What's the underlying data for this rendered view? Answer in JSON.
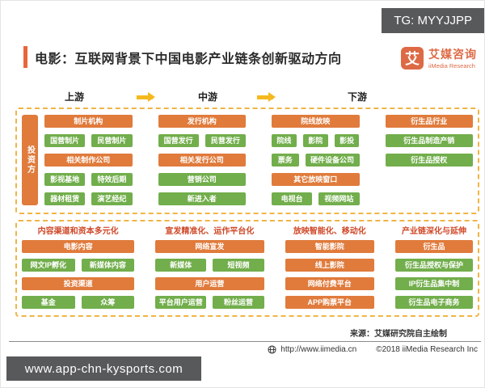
{
  "watermarks": {
    "top_right": "TG: MYYJJPP",
    "bottom_left": "www.app-chn-kysports.com"
  },
  "header": {
    "title": "电影：互联网背景下中国电影产业链条创新驱动方向",
    "logo": {
      "glyph": "艾",
      "name": "艾媒咨询",
      "subtitle": "iiMedia Research"
    }
  },
  "streams": [
    {
      "label": "上游"
    },
    {
      "label": "中游"
    },
    {
      "label": "下游"
    }
  ],
  "chain": {
    "investor_label": "投资方",
    "groups": [
      {
        "rows": [
          [
            {
              "t": "制片机构",
              "c": "orange"
            }
          ],
          [
            {
              "t": "国营制片",
              "c": "green"
            },
            {
              "t": "民营制片",
              "c": "green"
            }
          ],
          [
            {
              "t": "相关制作公司",
              "c": "orange"
            }
          ],
          [
            {
              "t": "影视基地",
              "c": "green"
            },
            {
              "t": "特效后期",
              "c": "green"
            }
          ],
          [
            {
              "t": "器材租赁",
              "c": "green"
            },
            {
              "t": "演艺经纪",
              "c": "green"
            }
          ]
        ]
      },
      {
        "rows": [
          [
            {
              "t": "发行机构",
              "c": "orange"
            }
          ],
          [
            {
              "t": "国营发行",
              "c": "green"
            },
            {
              "t": "民营发行",
              "c": "green"
            }
          ],
          [
            {
              "t": "相关发行公司",
              "c": "orange"
            }
          ],
          [
            {
              "t": "营销公司",
              "c": "green"
            }
          ],
          [
            {
              "t": "新进入者",
              "c": "green"
            }
          ]
        ]
      },
      {
        "rows": [
          [
            {
              "t": "院线放映",
              "c": "orange"
            }
          ],
          [
            {
              "t": "院线",
              "c": "green"
            },
            {
              "t": "影院",
              "c": "green"
            },
            {
              "t": "影投",
              "c": "green"
            }
          ],
          [
            {
              "t": "票务",
              "c": "green",
              "f": 1
            },
            {
              "t": "硬件设备公司",
              "c": "green",
              "f": 2
            }
          ],
          [
            {
              "t": "其它放映窗口",
              "c": "orange"
            }
          ],
          [
            {
              "t": "电视台",
              "c": "green"
            },
            {
              "t": "视频网站",
              "c": "green"
            }
          ]
        ]
      },
      {
        "rows": [
          [
            {
              "t": "衍生品行业",
              "c": "orange"
            }
          ],
          [
            {
              "t": "衍生品制造产销",
              "c": "green"
            }
          ],
          [
            {
              "t": "衍生品授权",
              "c": "green"
            }
          ]
        ]
      }
    ]
  },
  "innovation": {
    "columns": [
      {
        "header": "内容渠道和资本多元化",
        "rows": [
          [
            {
              "t": "电影内容",
              "c": "orange"
            }
          ],
          [
            {
              "t": "网文IP孵化",
              "c": "green"
            },
            {
              "t": "新媒体内容",
              "c": "green"
            }
          ],
          [
            {
              "t": "投资渠道",
              "c": "orange"
            }
          ],
          [
            {
              "t": "基金",
              "c": "green"
            },
            {
              "t": "众筹",
              "c": "green"
            }
          ]
        ]
      },
      {
        "header": "宣发精准化、运作平台化",
        "rows": [
          [
            {
              "t": "网络宣发",
              "c": "orange"
            }
          ],
          [
            {
              "t": "新媒体",
              "c": "green"
            },
            {
              "t": "短视频",
              "c": "green"
            }
          ],
          [
            {
              "t": "用户运营",
              "c": "orange"
            }
          ],
          [
            {
              "t": "平台用户运营",
              "c": "green"
            },
            {
              "t": "粉丝运营",
              "c": "green"
            }
          ]
        ]
      },
      {
        "header": "放映智能化、移动化",
        "rows": [
          [
            {
              "t": "智能影院",
              "c": "orange"
            }
          ],
          [
            {
              "t": "线上影院",
              "c": "orange"
            }
          ],
          [
            {
              "t": "网络付费平台",
              "c": "orange"
            }
          ],
          [
            {
              "t": "APP购票平台",
              "c": "orange"
            }
          ]
        ]
      },
      {
        "header": "产业链深化与延伸",
        "rows": [
          [
            {
              "t": "衍生品",
              "c": "orange"
            }
          ],
          [
            {
              "t": "衍生品授权与保护",
              "c": "green"
            }
          ],
          [
            {
              "t": "IP衍生品集中制",
              "c": "green"
            }
          ],
          [
            {
              "t": "衍生品电子商务",
              "c": "green"
            }
          ]
        ]
      }
    ]
  },
  "footer": {
    "source": "来源：艾媒研究院自主绘制",
    "url": "http://www.iimedia.cn",
    "copyright": "©2018  iiMedia Research Inc"
  },
  "colors": {
    "orange_box": "#E07B3C",
    "green_box": "#72AE4C",
    "section_header_red": "#CF4727",
    "dashed_border": "#F0B544",
    "arrow_yellow": "#F5B91E",
    "title_bar": "#E8663C",
    "logo_orange": "#DD6A45",
    "watermark_bg": "#58595B"
  }
}
